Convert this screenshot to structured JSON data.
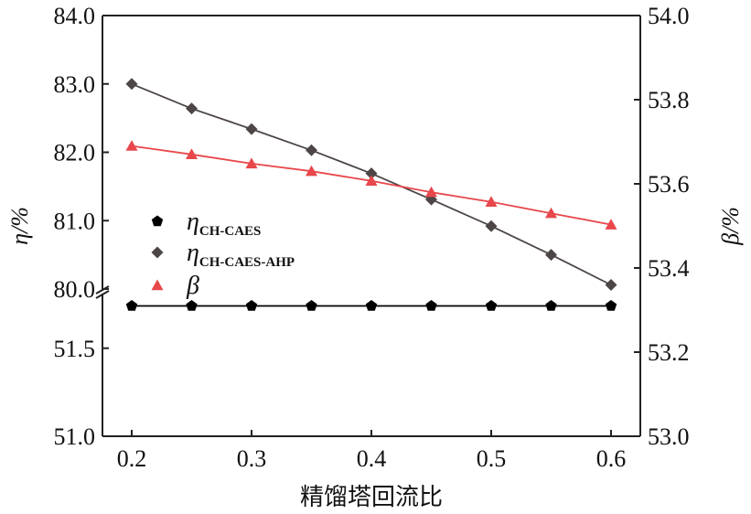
{
  "chart_data": {
    "type": "line",
    "xlabel": "精馏塔回流比",
    "ylabel_left": "η/%",
    "ylabel_right": "β/%",
    "x": [
      0.2,
      0.25,
      0.3,
      0.35,
      0.4,
      0.45,
      0.5,
      0.55,
      0.6
    ],
    "x_ticks": [
      "0.2",
      "0.3",
      "0.4",
      "0.5",
      "0.6"
    ],
    "x_tick_values": [
      0.2,
      0.3,
      0.4,
      0.5,
      0.6
    ],
    "xlim": [
      0.2,
      0.6
    ],
    "left_axis": {
      "broken": true,
      "upper_range": [
        80.0,
        84.0
      ],
      "lower_range": [
        51.0,
        51.8
      ],
      "upper_ticks": [
        "80.0",
        "81.0",
        "82.0",
        "83.0",
        "84.0"
      ],
      "upper_tick_values": [
        80.0,
        81.0,
        82.0,
        83.0,
        84.0
      ],
      "lower_ticks": [
        "51.0",
        "51.5"
      ],
      "lower_tick_values": [
        51.0,
        51.5
      ]
    },
    "right_axis": {
      "range": [
        53.0,
        54.0
      ],
      "ticks": [
        "53.0",
        "53.2",
        "53.4",
        "53.6",
        "53.8",
        "54.0"
      ],
      "tick_values": [
        53.0,
        53.2,
        53.4,
        53.6,
        53.8,
        54.0
      ]
    },
    "series": [
      {
        "name": "η",
        "name_sub": "CH-CAES",
        "axis": "left",
        "marker": "pentagon",
        "color": "#000000",
        "values": [
          51.74,
          51.74,
          51.74,
          51.74,
          51.74,
          51.74,
          51.74,
          51.74,
          51.74
        ]
      },
      {
        "name": "η",
        "name_sub": "CH-CAES-AHP",
        "axis": "left",
        "marker": "diamond",
        "color": "#4d4646",
        "values": [
          83.0,
          82.64,
          82.34,
          82.03,
          81.69,
          81.31,
          80.92,
          80.5,
          80.06
        ]
      },
      {
        "name": "β",
        "name_sub": "",
        "axis": "right",
        "marker": "triangle",
        "color": "#e8474b",
        "values": [
          53.69,
          53.67,
          53.648,
          53.63,
          53.607,
          53.58,
          53.557,
          53.53,
          53.503
        ]
      }
    ],
    "grid": false,
    "legend_position": "center-left"
  }
}
